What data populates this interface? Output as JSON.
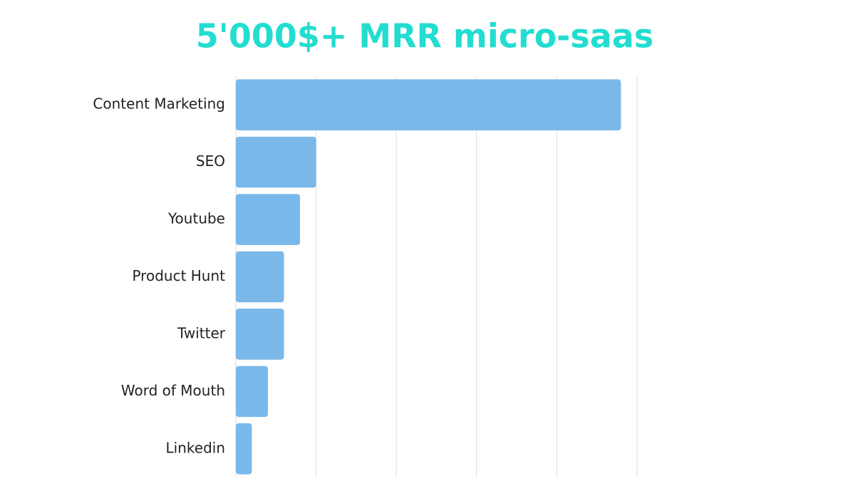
{
  "chart_data": {
    "type": "hbar",
    "title": "5'000$+ MRR micro-saas",
    "categories": [
      "Content Marketing",
      "SEO",
      "Youtube",
      "Product Hunt",
      "Twitter",
      "Word of Mouth",
      "Linkedin"
    ],
    "values": [
      24,
      5,
      4,
      3,
      3,
      2,
      1
    ],
    "color": "#7ab8ea",
    "xlim": [
      0,
      25
    ],
    "xticks": [
      0,
      5,
      10,
      15,
      20,
      25
    ],
    "grid": true
  }
}
